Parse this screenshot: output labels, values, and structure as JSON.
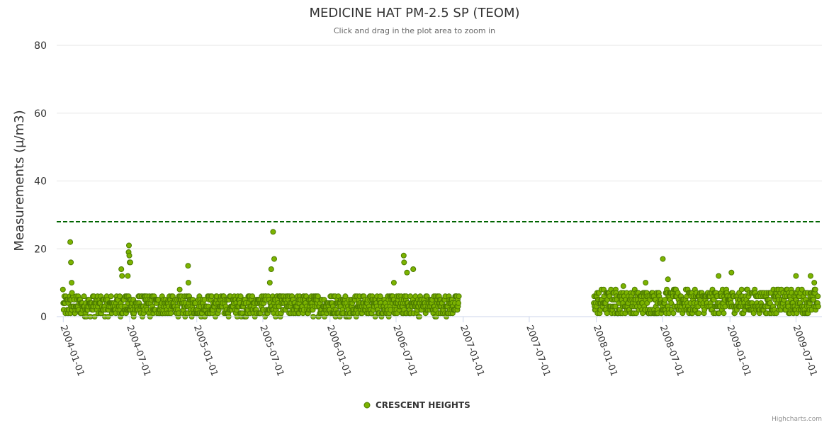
{
  "chart_data": {
    "type": "scatter",
    "title": "MEDICINE HAT PM-2.5 SP (TEOM)",
    "subtitle": "Click and drag in the plot area to zoom in",
    "ylabel": "Measurements (μ/m3)",
    "xlabel": "",
    "ylim": [
      0,
      80
    ],
    "yticks": [
      "0",
      "20",
      "40",
      "60",
      "80"
    ],
    "xlim": [
      "2003-12-14",
      "2009-09-10"
    ],
    "xticks": [
      "2004-01-01",
      "2004-07-01",
      "2005-01-01",
      "2005-07-01",
      "2006-01-01",
      "2006-07-01",
      "2007-01-01",
      "2007-07-01",
      "2008-01-01",
      "2008-07-01",
      "2009-01-01",
      "2009-07-01"
    ],
    "threshold": 28,
    "threshold_color": "#006400",
    "marker_color": "#7cb300",
    "marker_edge_color": "#4b7a00",
    "legend_position": "bottom-center",
    "series": [
      {
        "name": "CRESCENT HEIGHTS",
        "segments": [
          {
            "start": "2004-01-01",
            "end": "2006-12-20",
            "baseline": 3.0,
            "spread": 3.0
          },
          {
            "start": "2007-12-25",
            "end": "2009-08-31",
            "baseline": 4.0,
            "spread": 3.5
          }
        ],
        "peaks": [
          {
            "date": "2003-12-31",
            "value": 8
          },
          {
            "date": "2004-01-20",
            "value": 22
          },
          {
            "date": "2004-01-22",
            "value": 16
          },
          {
            "date": "2004-01-24",
            "value": 10
          },
          {
            "date": "2004-01-25",
            "value": 7
          },
          {
            "date": "2004-06-08",
            "value": 14
          },
          {
            "date": "2004-06-10",
            "value": 12
          },
          {
            "date": "2004-06-26",
            "value": 12
          },
          {
            "date": "2004-06-28",
            "value": 19
          },
          {
            "date": "2004-06-29",
            "value": 21
          },
          {
            "date": "2004-06-30",
            "value": 18
          },
          {
            "date": "2004-07-01",
            "value": 16
          },
          {
            "date": "2004-07-03",
            "value": 16
          },
          {
            "date": "2004-11-15",
            "value": 8
          },
          {
            "date": "2004-12-08",
            "value": 15
          },
          {
            "date": "2004-12-09",
            "value": 10
          },
          {
            "date": "2005-07-24",
            "value": 14
          },
          {
            "date": "2005-07-29",
            "value": 25
          },
          {
            "date": "2005-08-01",
            "value": 17
          },
          {
            "date": "2005-07-20",
            "value": 10
          },
          {
            "date": "2006-07-22",
            "value": 18
          },
          {
            "date": "2006-07-23",
            "value": 16
          },
          {
            "date": "2006-07-31",
            "value": 13
          },
          {
            "date": "2006-08-17",
            "value": 14
          },
          {
            "date": "2006-06-25",
            "value": 10
          },
          {
            "date": "2008-07-01",
            "value": 17
          },
          {
            "date": "2008-03-15",
            "value": 9
          },
          {
            "date": "2008-05-15",
            "value": 10
          },
          {
            "date": "2008-07-15",
            "value": 11
          },
          {
            "date": "2008-12-01",
            "value": 12
          },
          {
            "date": "2009-01-05",
            "value": 13
          },
          {
            "date": "2009-07-01",
            "value": 12
          },
          {
            "date": "2009-08-10",
            "value": 12
          },
          {
            "date": "2009-08-20",
            "value": 10
          }
        ]
      }
    ]
  },
  "credits": "Highcharts.com"
}
